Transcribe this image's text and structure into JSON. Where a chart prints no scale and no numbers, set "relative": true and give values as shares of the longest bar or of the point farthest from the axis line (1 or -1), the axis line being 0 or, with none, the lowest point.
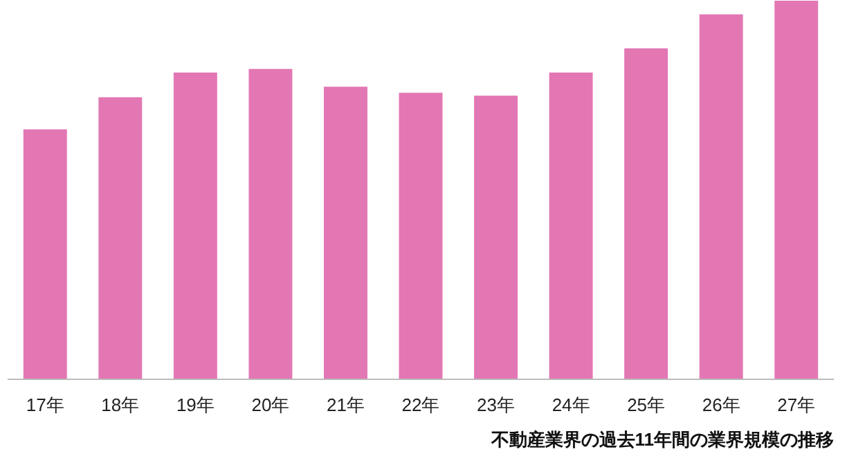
{
  "chart_data": {
    "type": "bar",
    "title": "不動産業界の過去11年間の業界規模の推移",
    "categories": [
      "17年",
      "18年",
      "19年",
      "20年",
      "21年",
      "22年",
      "23年",
      "24年",
      "25年",
      "26年",
      "27年"
    ],
    "values": [
      0.66,
      0.745,
      0.81,
      0.82,
      0.773,
      0.757,
      0.749,
      0.81,
      0.874,
      0.964,
      1
    ],
    "color": "#e377b4",
    "relative": true,
    "grid": false
  }
}
